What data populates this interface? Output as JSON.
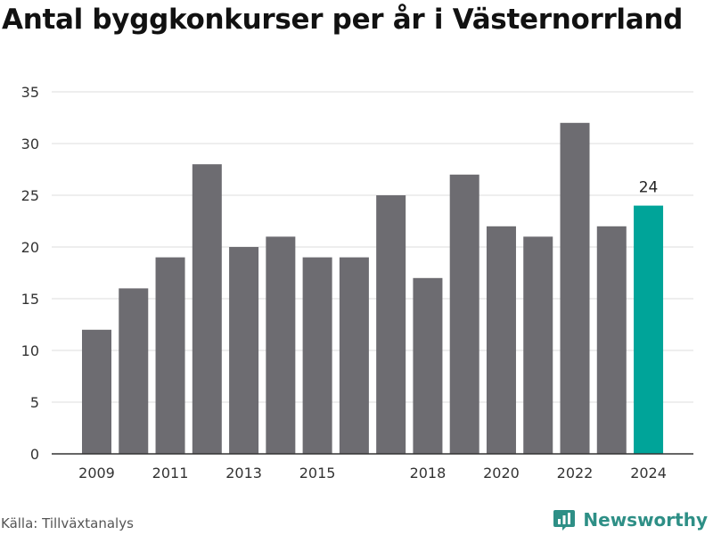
{
  "title": "Antal byggkonkurser per år i Västernorrland",
  "source": "Källa: Tillväxtanalys",
  "brand": {
    "name": "Newsworthy",
    "icon": "newsworthy-logo-icon",
    "color": "#2e8f86"
  },
  "chart_data": {
    "type": "bar",
    "title": "Antal byggkonkurser per år i Västernorrland",
    "xlabel": "",
    "ylabel": "",
    "categories": [
      "2009",
      "2010",
      "2011",
      "2012",
      "2013",
      "2014",
      "2015",
      "2016",
      "2017",
      "2018",
      "2019",
      "2020",
      "2021",
      "2022",
      "2023",
      "2024"
    ],
    "values": [
      12,
      16,
      19,
      28,
      20,
      21,
      19,
      19,
      25,
      17,
      27,
      22,
      21,
      32,
      22,
      24
    ],
    "x_tick_labels": [
      {
        "category": "2009",
        "label": "2009"
      },
      {
        "category": "2011",
        "label": "2011"
      },
      {
        "category": "2013",
        "label": "2013"
      },
      {
        "category": "2015",
        "label": "2015"
      },
      {
        "category": "2018",
        "label": "2018"
      },
      {
        "category": "2020",
        "label": "2020"
      },
      {
        "category": "2022",
        "label": "2022"
      },
      {
        "category": "2024",
        "label": "2024"
      }
    ],
    "y_ticks": [
      0,
      5,
      10,
      15,
      20,
      25,
      30,
      35
    ],
    "ylim": [
      0,
      35
    ],
    "grid": true,
    "legend": false,
    "highlight": {
      "category": "2024",
      "label": "24"
    },
    "colors": {
      "bar": "#6d6c71",
      "highlight": "#00a499",
      "grid": "#dddddd",
      "axis": "#333333"
    }
  }
}
